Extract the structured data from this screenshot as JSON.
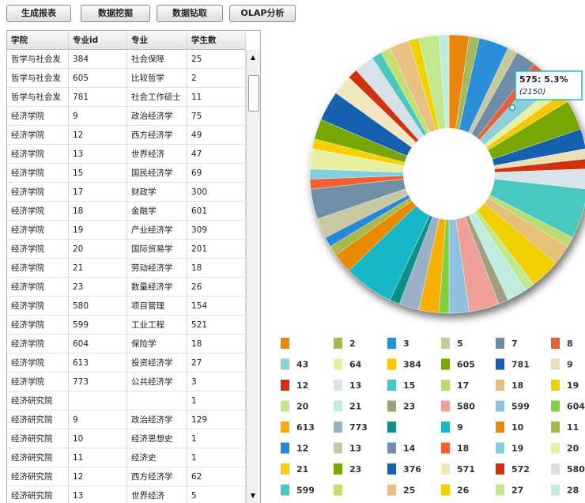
{
  "toolbar": {
    "buttons": [
      "生成报表",
      "数据挖掘",
      "数据钻取",
      "OLAP分析"
    ]
  },
  "table": {
    "columns": [
      "学院",
      "专业id",
      "专业",
      "学生数"
    ],
    "rows": [
      [
        "哲学与社会发",
        "384",
        "社会保障",
        "25"
      ],
      [
        "哲学与社会发",
        "605",
        "比较哲学",
        "2"
      ],
      [
        "哲学与社会发",
        "781",
        "社会工作硕士",
        "11"
      ],
      [
        "经济学院",
        "9",
        "政治经济学",
        "75"
      ],
      [
        "经济学院",
        "12",
        "西方经济学",
        "49"
      ],
      [
        "经济学院",
        "13",
        "世界经济",
        "47"
      ],
      [
        "经济学院",
        "15",
        "国民经济学",
        "69"
      ],
      [
        "经济学院",
        "17",
        "财政学",
        "300"
      ],
      [
        "经济学院",
        "18",
        "金融学",
        "601"
      ],
      [
        "经济学院",
        "19",
        "产业经济学",
        "309"
      ],
      [
        "经济学院",
        "20",
        "国际贸易学",
        "201"
      ],
      [
        "经济学院",
        "21",
        "劳动经济学",
        "18"
      ],
      [
        "经济学院",
        "23",
        "数量经济学",
        "26"
      ],
      [
        "经济学院",
        "580",
        "项目管理",
        "154"
      ],
      [
        "经济学院",
        "599",
        "工业工程",
        "521"
      ],
      [
        "经济学院",
        "604",
        "保险学",
        "18"
      ],
      [
        "经济学院",
        "613",
        "投资经济学",
        "27"
      ],
      [
        "经济学院",
        "773",
        "公共经济学",
        "3"
      ],
      [
        "经济研究院",
        null,
        null,
        "1"
      ],
      [
        "经济研究院",
        "9",
        "政治经济学",
        "129"
      ],
      [
        "经济研究院",
        "10",
        "经济思想史",
        "1"
      ],
      [
        "经济研究院",
        "11",
        "经济史",
        "1"
      ],
      [
        "经济研究院",
        "12",
        "西方经济学",
        "62"
      ],
      [
        "经济研究院",
        "13",
        "世界经济",
        "5"
      ]
    ]
  },
  "chart_data": {
    "type": "donut",
    "categories": [
      null,
      "2",
      "3",
      "5",
      "7",
      "8",
      "43",
      "64",
      "384",
      "605",
      "781",
      "9",
      "12",
      "13",
      "15",
      "17",
      "18",
      "19",
      "20",
      "21",
      "23",
      "580",
      "599",
      "604",
      "613",
      "773",
      null,
      "9",
      "10",
      "11",
      "12",
      "13",
      "14",
      "18",
      "19",
      "20",
      "21",
      "23",
      "376",
      "571",
      "572",
      "580",
      "599",
      null,
      "25",
      "26",
      "27",
      "28"
    ],
    "values": [
      2,
      1,
      3,
      1,
      2,
      1,
      2,
      1,
      1,
      3,
      2,
      1,
      1,
      2,
      5,
      1,
      2,
      3,
      1,
      2,
      1,
      3,
      2,
      1,
      2,
      2,
      1,
      5,
      2,
      1,
      1,
      2,
      3,
      1,
      1,
      2,
      1,
      2,
      3,
      2,
      1,
      2,
      1,
      1,
      2,
      1,
      2,
      1
    ],
    "colors": [
      "#e8850c",
      "#a5b85a",
      "#2a8fd8",
      "#c8c89a",
      "#6e8ca8",
      "#e8603a",
      "#8ecfdc",
      "#e6f0a0",
      "#f5c800",
      "#78a800",
      "#1560b0",
      "#e8e0b0",
      "#d03010",
      "#d8e4ec",
      "#48c8c0",
      "#b8dc70",
      "#e4c078",
      "#f0d000",
      "#c0e890",
      "#c0ece0",
      "#a0a080",
      "#f0a098",
      "#90c0e0",
      "#80d040",
      "#f8b000",
      "#9ab0c8",
      "#109088",
      "#18b8c8",
      "#e88a00",
      "#a8b848",
      "#2888d8",
      "#c8c8a0",
      "#7090a8",
      "#f06030",
      "#80d0e0",
      "#e8f0a0",
      "#f8d000",
      "#78a800",
      "#1860b0",
      "#f0e8c0",
      "#d03010",
      "#d8e0e8",
      "#48c8c0",
      "#c0e070",
      "#e8c080",
      "#f0d000",
      "#c0e890",
      "#c0ece0"
    ],
    "tooltip": {
      "label": "575: 5.3%",
      "sublabel": "(2150)"
    }
  }
}
